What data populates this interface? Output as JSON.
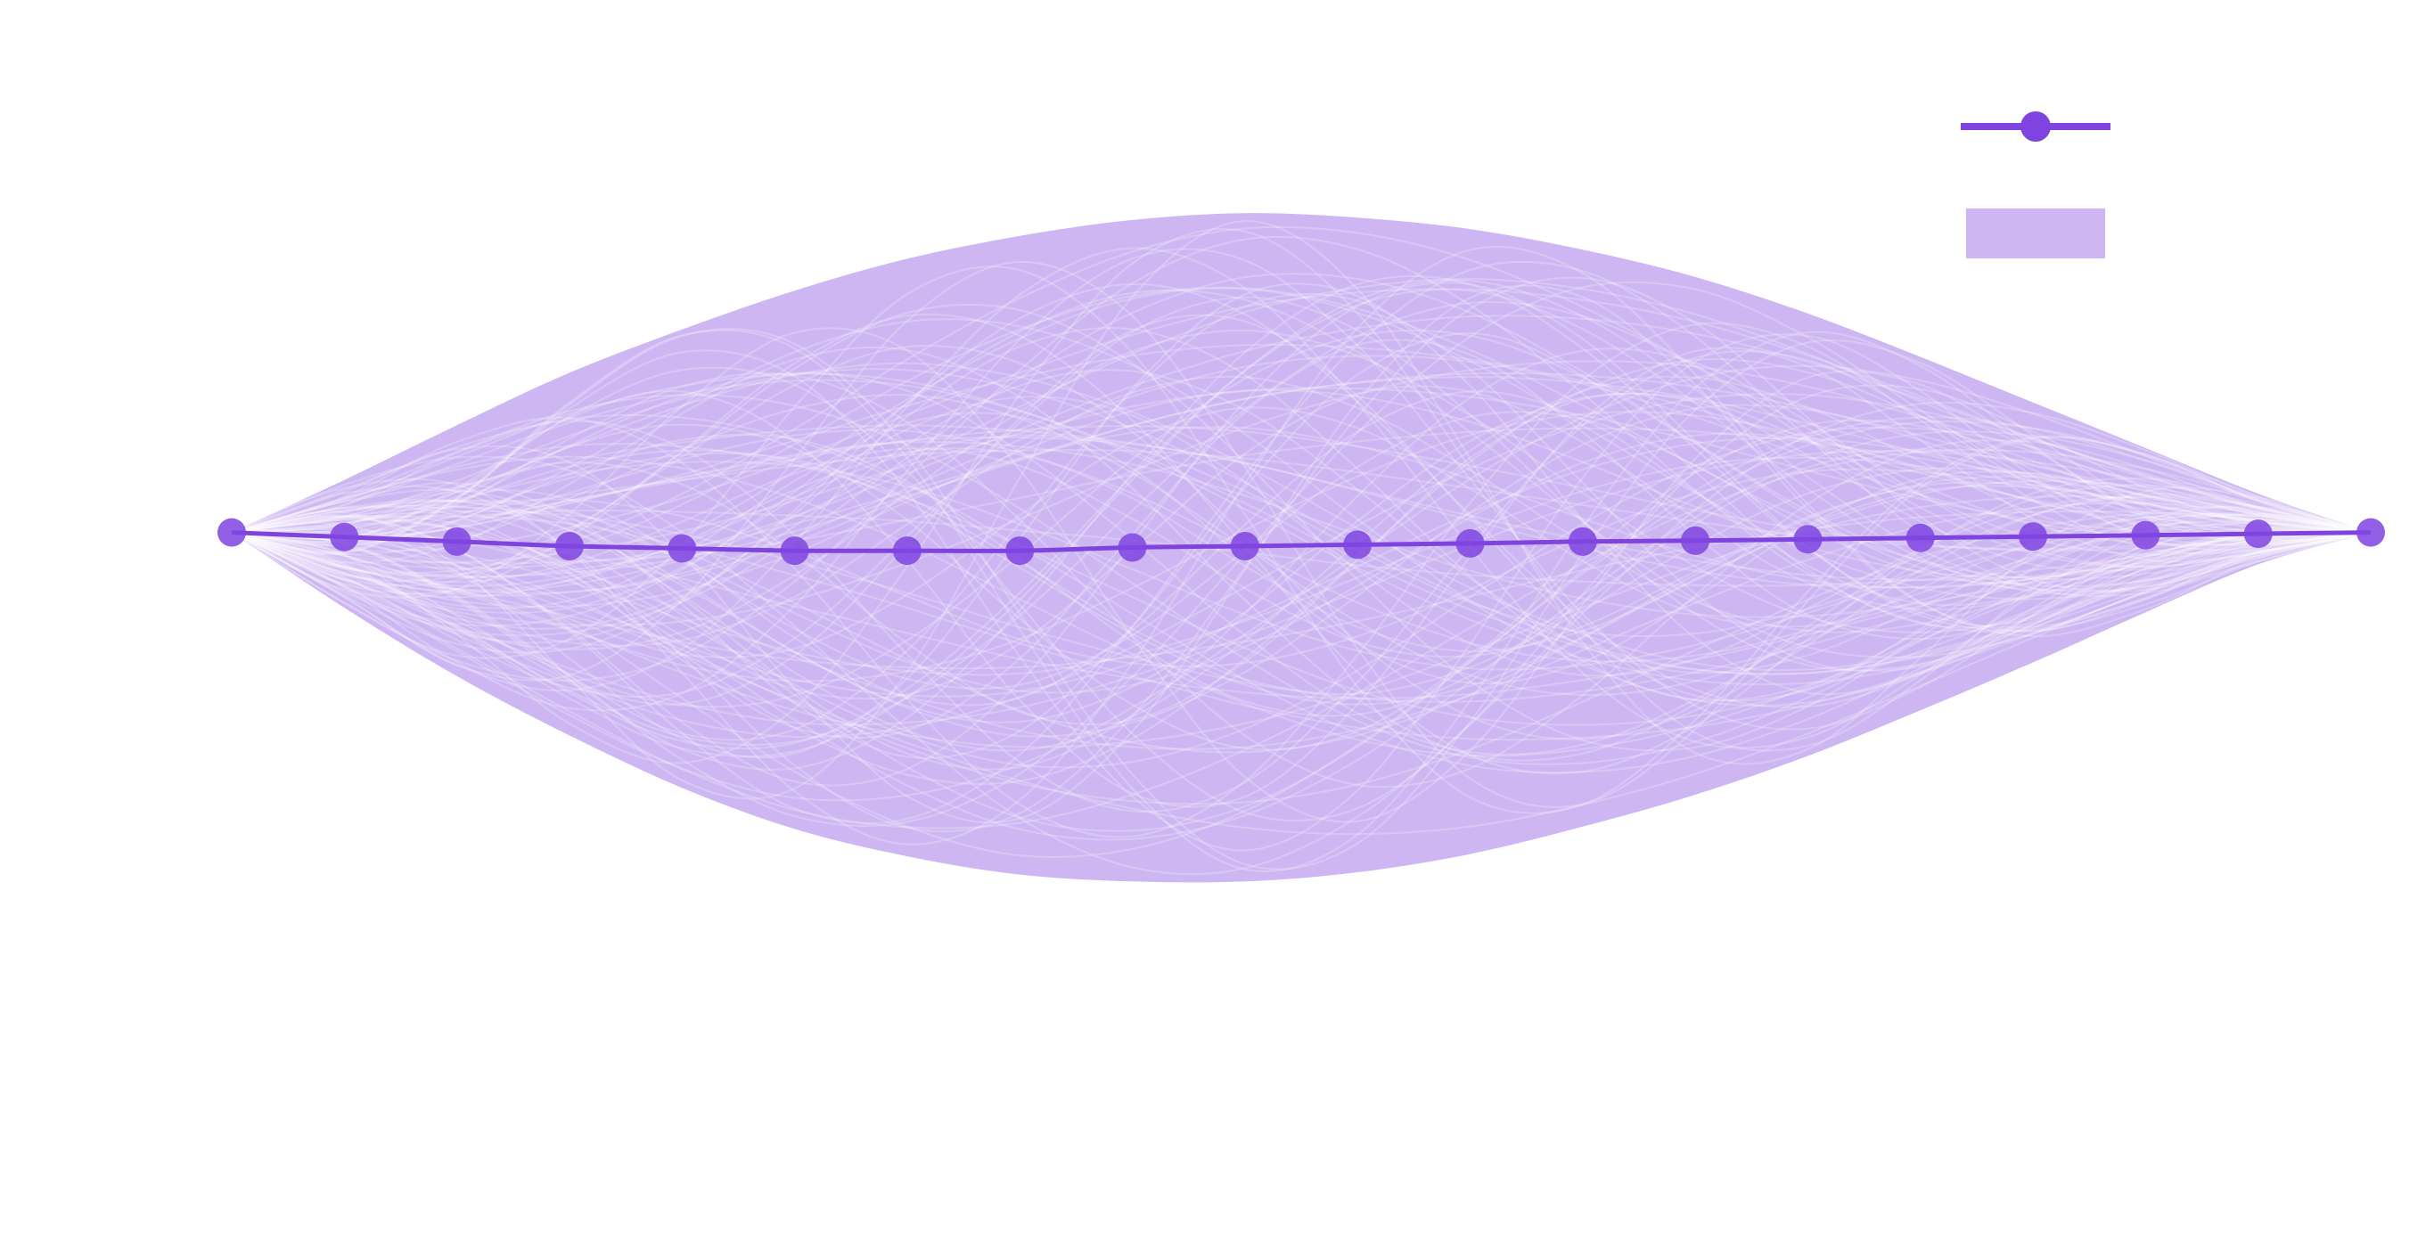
{
  "chart_data": {
    "type": "line",
    "title": "",
    "xlabel": "",
    "ylabel": "",
    "grid": false,
    "legend_position": "top-right",
    "colors": {
      "line": "#7f44e0",
      "band": "#cdb6f2",
      "sample_path": "#ffffff"
    },
    "xlim": [
      0,
      19
    ],
    "ylim": [
      -1.45,
      1.05
    ],
    "x": [
      0,
      1,
      2,
      3,
      4,
      5,
      6,
      7,
      8,
      9,
      10,
      11,
      12,
      13,
      14,
      15,
      16,
      17,
      18,
      19
    ],
    "series": [
      {
        "name": "",
        "values": [
          0.0,
          -0.01,
          -0.02,
          -0.03,
          -0.035,
          -0.04,
          -0.04,
          -0.04,
          -0.033,
          -0.03,
          -0.027,
          -0.024,
          -0.02,
          -0.018,
          -0.015,
          -0.012,
          -0.009,
          -0.006,
          -0.003,
          0.0
        ]
      }
    ],
    "band": {
      "name": "",
      "lower": [
        0.0,
        -0.165,
        -0.315,
        -0.445,
        -0.56,
        -0.65,
        -0.71,
        -0.75,
        -0.765,
        -0.765,
        -0.745,
        -0.705,
        -0.645,
        -0.575,
        -0.49,
        -0.39,
        -0.285,
        -0.175,
        -0.07,
        0.0
      ],
      "upper": [
        0.0,
        0.115,
        0.235,
        0.35,
        0.445,
        0.53,
        0.6,
        0.65,
        0.685,
        0.7,
        0.69,
        0.665,
        0.62,
        0.56,
        0.48,
        0.385,
        0.285,
        0.185,
        0.085,
        0.0
      ]
    },
    "sample_paths": {
      "count": 120,
      "opacity": 0.22
    }
  }
}
